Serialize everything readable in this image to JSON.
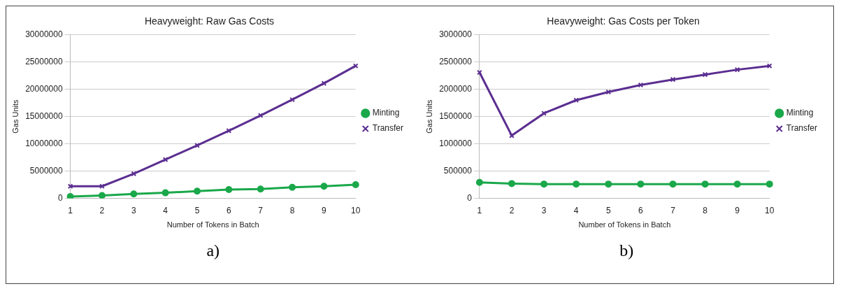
{
  "chart_data": [
    {
      "type": "line",
      "title": "Heavyweight: Raw Gas Costs",
      "xlabel": "Number of Tokens in Batch",
      "ylabel": "Gas Units",
      "categories": [
        "1",
        "2",
        "3",
        "4",
        "5",
        "6",
        "7",
        "8",
        "9",
        "10"
      ],
      "series": [
        {
          "name": "Minting",
          "color": "#1aa84a",
          "marker": "circle",
          "values": [
            300000,
            500000,
            800000,
            1000000,
            1300000,
            1600000,
            1700000,
            2000000,
            2200000,
            2500000
          ]
        },
        {
          "name": "Transfer",
          "color": "#5b2e91",
          "marker": "cross",
          "values": [
            2200000,
            2200000,
            4500000,
            7100000,
            9700000,
            12400000,
            15200000,
            18100000,
            21100000,
            24300000
          ]
        }
      ],
      "ylim": [
        0,
        30000000
      ],
      "yticks": [
        0,
        5000000,
        10000000,
        15000000,
        20000000,
        25000000,
        30000000
      ],
      "grid": "y",
      "legend": "right",
      "annotations": [
        "a)"
      ]
    },
    {
      "type": "line",
      "title": "Heavyweight: Gas Costs per Token",
      "xlabel": "Number of Tokens in Batch",
      "ylabel": "Gas Units",
      "categories": [
        "1",
        "2",
        "3",
        "4",
        "5",
        "6",
        "7",
        "8",
        "9",
        "10"
      ],
      "series": [
        {
          "name": "Minting",
          "color": "#1aa84a",
          "marker": "circle",
          "values": [
            290000,
            270000,
            260000,
            260000,
            260000,
            260000,
            260000,
            260000,
            260000,
            260000
          ]
        },
        {
          "name": "Transfer",
          "color": "#5b2e91",
          "marker": "cross",
          "values": [
            2310000,
            1150000,
            1560000,
            1800000,
            1950000,
            2080000,
            2180000,
            2270000,
            2360000,
            2430000
          ]
        }
      ],
      "ylim": [
        0,
        3000000
      ],
      "yticks": [
        0,
        500000,
        1000000,
        1500000,
        2000000,
        2500000,
        3000000
      ],
      "grid": "y",
      "legend": "right",
      "annotations": [
        "b)"
      ]
    }
  ]
}
